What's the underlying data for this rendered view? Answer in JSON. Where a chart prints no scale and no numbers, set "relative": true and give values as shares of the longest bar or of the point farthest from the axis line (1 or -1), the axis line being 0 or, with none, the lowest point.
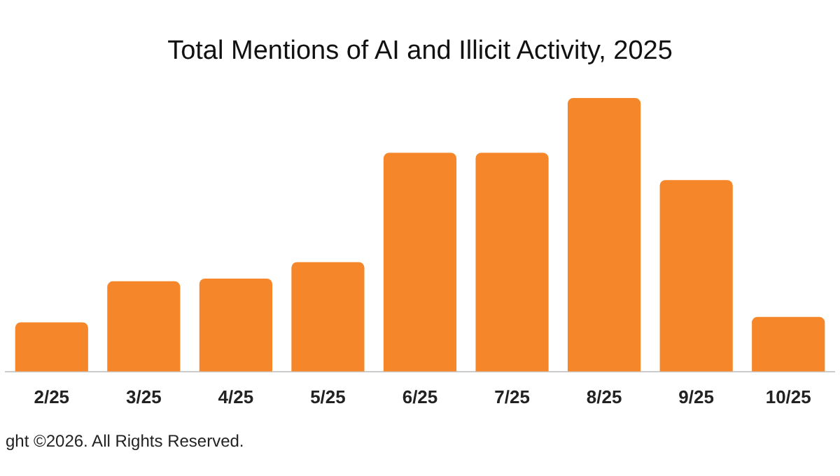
{
  "chart_data": {
    "type": "bar",
    "title": "Total Mentions of AI and Illicit Activity, 2025",
    "categories": [
      "2/25",
      "3/25",
      "4/25",
      "5/25",
      "6/25",
      "7/25",
      "8/25",
      "9/25",
      "10/25"
    ],
    "values": [
      0.18,
      0.33,
      0.34,
      0.4,
      0.8,
      0.8,
      1,
      0.7,
      0.2
    ],
    "color": "#f5872a",
    "relative": true,
    "annotations": [
      "ght ©2026. All Rights Reserved."
    ]
  }
}
